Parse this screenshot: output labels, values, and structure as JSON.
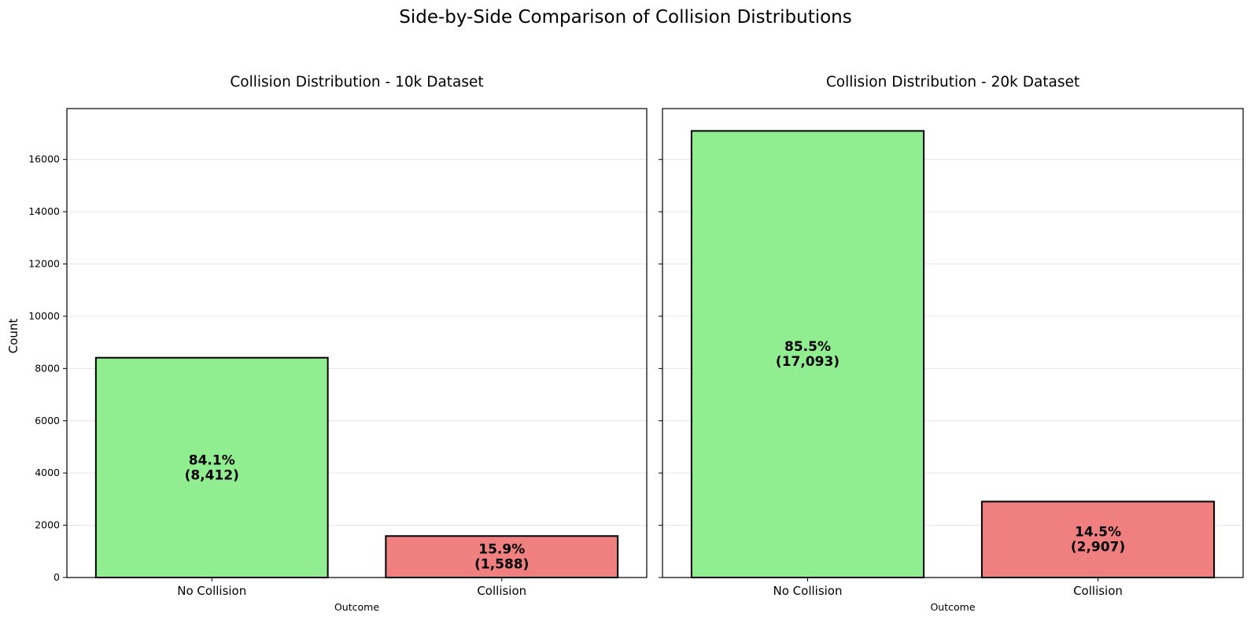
{
  "suptitle": "Side-by-Side Comparison of Collision Distributions",
  "shared_y": {
    "label": "Count",
    "ylim": [
      0,
      17948
    ],
    "ticks": [
      0,
      2000,
      4000,
      6000,
      8000,
      10000,
      12000,
      14000,
      16000
    ],
    "tick_labels": [
      "0",
      "2000",
      "4000",
      "6000",
      "8000",
      "10000",
      "12000",
      "14000",
      "16000"
    ]
  },
  "colors": {
    "no_collision": "#90EE90",
    "collision": "#F08080",
    "edge": "#000000",
    "grid": "#e6e6e6"
  },
  "chart_data": [
    {
      "type": "bar",
      "title": "Collision Distribution - 10k Dataset",
      "xlabel": "Outcome",
      "ylabel": "Count",
      "categories": [
        "No Collision",
        "Collision"
      ],
      "values": [
        8412,
        1588
      ],
      "bar_labels": [
        [
          "84.1%",
          "(8,412)"
        ],
        [
          "15.9%",
          "(1,588)"
        ]
      ],
      "ylim": [
        0,
        17948
      ],
      "grid": "y"
    },
    {
      "type": "bar",
      "title": "Collision Distribution - 20k Dataset",
      "xlabel": "Outcome",
      "ylabel": "",
      "categories": [
        "No Collision",
        "Collision"
      ],
      "values": [
        17093,
        2907
      ],
      "bar_labels": [
        [
          "85.5%",
          "(17,093)"
        ],
        [
          "14.5%",
          "(2,907)"
        ]
      ],
      "ylim": [
        0,
        17948
      ],
      "grid": "y"
    }
  ]
}
